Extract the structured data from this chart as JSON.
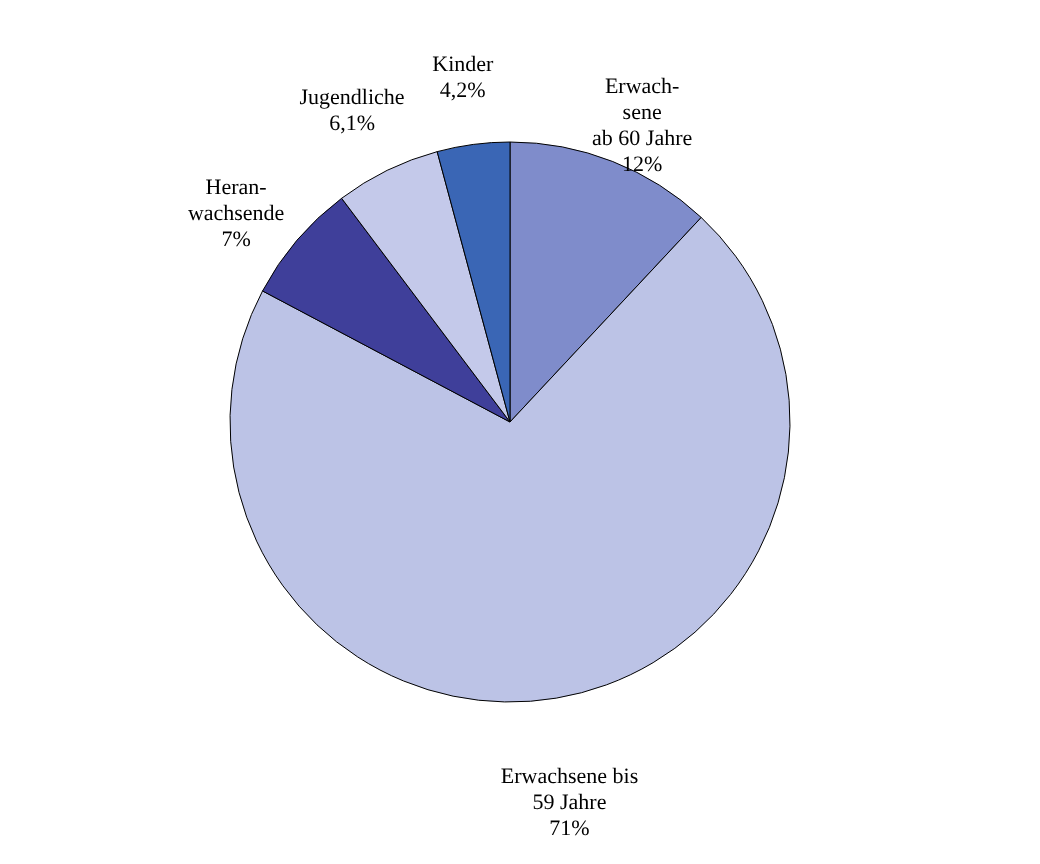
{
  "chart_data": {
    "type": "pie",
    "categories": [
      "Erwach-\nsene\nab 60 Jahre",
      "Erwachsene bis\n59 Jahre",
      "Heran-\nwachsende",
      "Jugendliche",
      "Kinder"
    ],
    "values": [
      12,
      71,
      7,
      6.1,
      4.2
    ],
    "value_labels": [
      "12%",
      "71%",
      "7%",
      "6,1%",
      "4,2%"
    ],
    "colors": [
      "#7f8ccb",
      "#bcc3e6",
      "#3f3f9a",
      "#c4c9ea",
      "#3a66b5"
    ]
  }
}
